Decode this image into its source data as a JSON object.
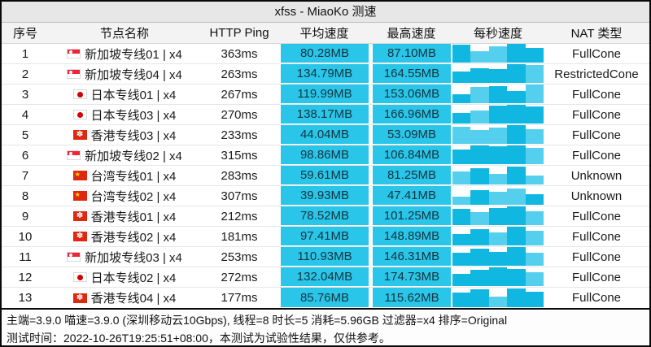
{
  "title": "xfss - MiaoKo 测速",
  "colors": {
    "speed_cell": "#29c6e9",
    "spark_light": "#55cfee",
    "spark_dark": "#10b7e0",
    "flag_red": "#de2910",
    "titlebar_bg": "#e7e7e7",
    "header_bg": "#f3f3f3"
  },
  "table": {
    "headers": [
      "序号",
      "节点名称",
      "HTTP Ping",
      "平均速度",
      "最高速度",
      "每秒速度",
      "NAT 类型"
    ],
    "rows": [
      {
        "seq": "1",
        "flag": "sg",
        "name": "新加坡专线01 | x4",
        "ping": "363ms",
        "avg": "80.28MB",
        "max": "87.10MB",
        "nat": "FullCone",
        "spark": {
          "heights": [
            0.95,
            0.6,
            0.85,
            1.0,
            0.8
          ],
          "shades": [
            "d",
            "l",
            "l",
            "d",
            "d"
          ]
        }
      },
      {
        "seq": "2",
        "flag": "sg",
        "name": "新加坡专线04 | x4",
        "ping": "263ms",
        "avg": "134.79MB",
        "max": "164.55MB",
        "nat": "RestrictedCone",
        "spark": {
          "heights": [
            0.6,
            0.8,
            0.75,
            1.0,
            0.95
          ],
          "shades": [
            "d",
            "d",
            "d",
            "d",
            "l"
          ]
        }
      },
      {
        "seq": "3",
        "flag": "jp",
        "name": "日本专线01 | x4",
        "ping": "267ms",
        "avg": "119.99MB",
        "max": "153.06MB",
        "nat": "FullCone",
        "spark": {
          "heights": [
            0.5,
            0.85,
            0.9,
            0.65,
            1.0
          ],
          "shades": [
            "d",
            "l",
            "d",
            "d",
            "l"
          ]
        }
      },
      {
        "seq": "4",
        "flag": "jp",
        "name": "日本专线03 | x4",
        "ping": "270ms",
        "avg": "138.17MB",
        "max": "166.96MB",
        "nat": "FullCone",
        "spark": {
          "heights": [
            0.55,
            0.7,
            0.95,
            1.0,
            0.9
          ],
          "shades": [
            "d",
            "l",
            "d",
            "d",
            "d"
          ]
        }
      },
      {
        "seq": "5",
        "flag": "hk",
        "name": "香港专线03 | x4",
        "ping": "233ms",
        "avg": "44.04MB",
        "max": "53.09MB",
        "nat": "FullCone",
        "spark": {
          "heights": [
            0.9,
            0.75,
            0.85,
            1.0,
            0.8
          ],
          "shades": [
            "l",
            "l",
            "l",
            "d",
            "l"
          ]
        }
      },
      {
        "seq": "6",
        "flag": "sg",
        "name": "新加坡专线02 | x4",
        "ping": "315ms",
        "avg": "98.86MB",
        "max": "106.84MB",
        "nat": "FullCone",
        "spark": {
          "heights": [
            0.8,
            1.0,
            0.95,
            1.0,
            0.85
          ],
          "shades": [
            "d",
            "d",
            "d",
            "d",
            "l"
          ]
        }
      },
      {
        "seq": "7",
        "flag": "cn",
        "name": "台湾专线01 | x4",
        "ping": "283ms",
        "avg": "59.61MB",
        "max": "81.25MB",
        "nat": "Unknown",
        "spark": {
          "heights": [
            0.7,
            0.85,
            0.55,
            0.95,
            0.5
          ],
          "shades": [
            "l",
            "d",
            "l",
            "d",
            "l"
          ]
        }
      },
      {
        "seq": "8",
        "flag": "cn",
        "name": "台湾专线02 | x4",
        "ping": "307ms",
        "avg": "39.93MB",
        "max": "47.41MB",
        "nat": "Unknown",
        "spark": {
          "heights": [
            0.45,
            0.8,
            0.7,
            0.85,
            0.55
          ],
          "shades": [
            "l",
            "d",
            "l",
            "l",
            "d"
          ]
        }
      },
      {
        "seq": "9",
        "flag": "hk",
        "name": "香港专线01 | x4",
        "ping": "212ms",
        "avg": "78.52MB",
        "max": "101.25MB",
        "nat": "FullCone",
        "spark": {
          "heights": [
            0.85,
            0.7,
            0.9,
            1.0,
            0.75
          ],
          "shades": [
            "d",
            "l",
            "d",
            "d",
            "l"
          ]
        }
      },
      {
        "seq": "10",
        "flag": "hk",
        "name": "香港专线02 | x4",
        "ping": "181ms",
        "avg": "97.41MB",
        "max": "148.89MB",
        "nat": "FullCone",
        "spark": {
          "heights": [
            0.6,
            0.85,
            0.7,
            1.0,
            0.8
          ],
          "shades": [
            "d",
            "d",
            "l",
            "d",
            "l"
          ]
        }
      },
      {
        "seq": "11",
        "flag": "sg",
        "name": "新加坡专线03 | x4",
        "ping": "253ms",
        "avg": "110.93MB",
        "max": "146.31MB",
        "nat": "FullCone",
        "spark": {
          "heights": [
            0.7,
            0.9,
            0.75,
            1.0,
            0.7
          ],
          "shades": [
            "d",
            "d",
            "d",
            "d",
            "l"
          ]
        }
      },
      {
        "seq": "12",
        "flag": "jp",
        "name": "日本专线02 | x4",
        "ping": "272ms",
        "avg": "132.04MB",
        "max": "174.73MB",
        "nat": "FullCone",
        "spark": {
          "heights": [
            0.65,
            0.85,
            1.0,
            0.9,
            0.75
          ],
          "shades": [
            "d",
            "d",
            "d",
            "d",
            "l"
          ]
        }
      },
      {
        "seq": "13",
        "flag": "hk",
        "name": "香港专线04 | x4",
        "ping": "177ms",
        "avg": "85.76MB",
        "max": "115.62MB",
        "nat": "FullCone",
        "spark": {
          "heights": [
            0.75,
            0.9,
            0.55,
            0.95,
            0.8
          ],
          "shades": [
            "d",
            "d",
            "l",
            "d",
            "d"
          ]
        }
      }
    ]
  },
  "footer": {
    "line1": "主端=3.9.0 喵速=3.9.0 (深圳移动云10Gbps), 线程=8 时长=5 消耗=5.96GB 过滤器=x4 排序=Original",
    "line2": "测试时间：2022-10-26T19:25:51+08:00，本测试为试验性结果，仅供参考。"
  }
}
